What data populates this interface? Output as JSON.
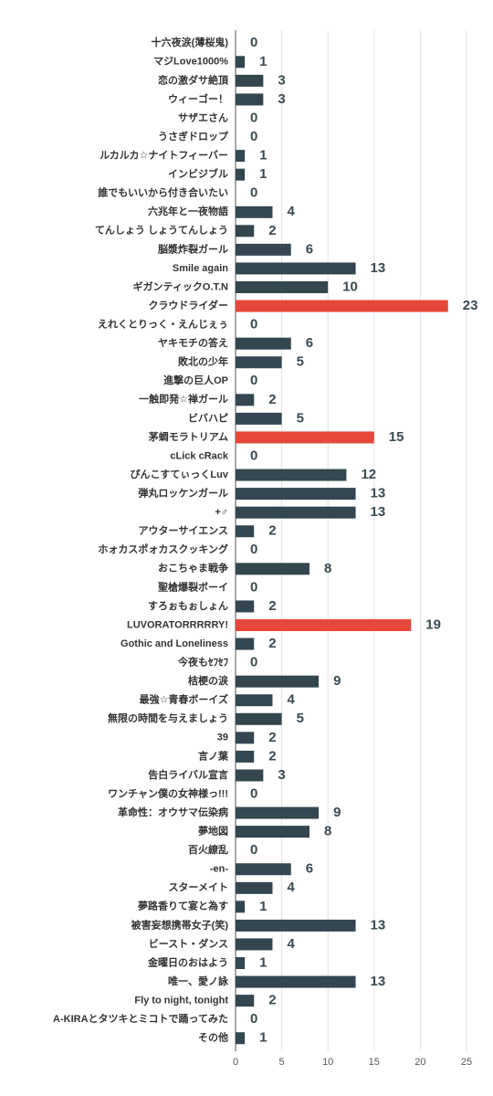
{
  "chart_data": {
    "type": "barh",
    "categories": [
      "十六夜涙(薄桜鬼)",
      "マジLove1000%",
      "恋の激ダサ絶頂",
      "ウィーゴー！",
      "サザエさん",
      "うさぎドロップ",
      "ルカルカ☆ナイトフィーバー",
      "インビジブル",
      "誰でもいいから付き合いたい",
      "六兆年と一夜物語",
      "てんしょう しょうてんしょう",
      "脳漿炸裂ガール",
      "Smile again",
      "ギガンティックO.T.N",
      "クラウドライダー",
      "えれくとりっく・えんじぇぅ",
      "ヤキモチの答え",
      "敗北の少年",
      "進撃の巨人OP",
      "一触即発☆禅ガール",
      "ビバハピ",
      "茅蜩モラトリアム",
      "cLick cRack",
      "ぴんこすてぃっくLuv",
      "弾丸ロッケンガール",
      "+♂",
      "アウターサイエンス",
      "ホォカスポォカスクッキング",
      "おこちゃま戦争",
      "聖槍爆裂ボーイ",
      "すろぉもぉしょん",
      "LUVORATORRRRRY!",
      "Gothic and Loneliness",
      "今夜もｾﾌｾﾌ",
      "桔梗の涙",
      "最強☆青春ボーイズ",
      "無限の時間を与えましょう",
      "39",
      "言ノ葉",
      "告白ライバル宣言",
      "ワンチャン僕の女神様っ!!!",
      "革命性：オウサマ伝染病",
      "夢地図",
      "百火繚乱",
      "-en-",
      "スターメイト",
      "夢路香りて宴と為す",
      "被害妄想携帯女子(笑)",
      "ビースト・ダンス",
      "金曜日のおはよう",
      "唯一、愛ノ詠",
      "Fly to night, tonight",
      "A-KIRAとタツキとミコトで踊ってみた",
      "その他"
    ],
    "values": [
      0,
      1,
      3,
      3,
      0,
      0,
      1,
      1,
      0,
      4,
      2,
      6,
      13,
      10,
      23,
      0,
      6,
      5,
      0,
      2,
      5,
      15,
      0,
      12,
      13,
      13,
      2,
      0,
      8,
      0,
      2,
      19,
      2,
      0,
      9,
      4,
      5,
      2,
      2,
      3,
      0,
      9,
      8,
      0,
      6,
      4,
      1,
      13,
      4,
      1,
      13,
      2,
      0,
      1
    ],
    "color": "#34464f",
    "highlight_color": "#e5483a",
    "highlight": [
      14,
      21,
      31
    ],
    "xlim": [
      0,
      25
    ],
    "xticks": [
      0,
      5,
      10,
      15,
      20,
      25
    ],
    "grid": true
  }
}
